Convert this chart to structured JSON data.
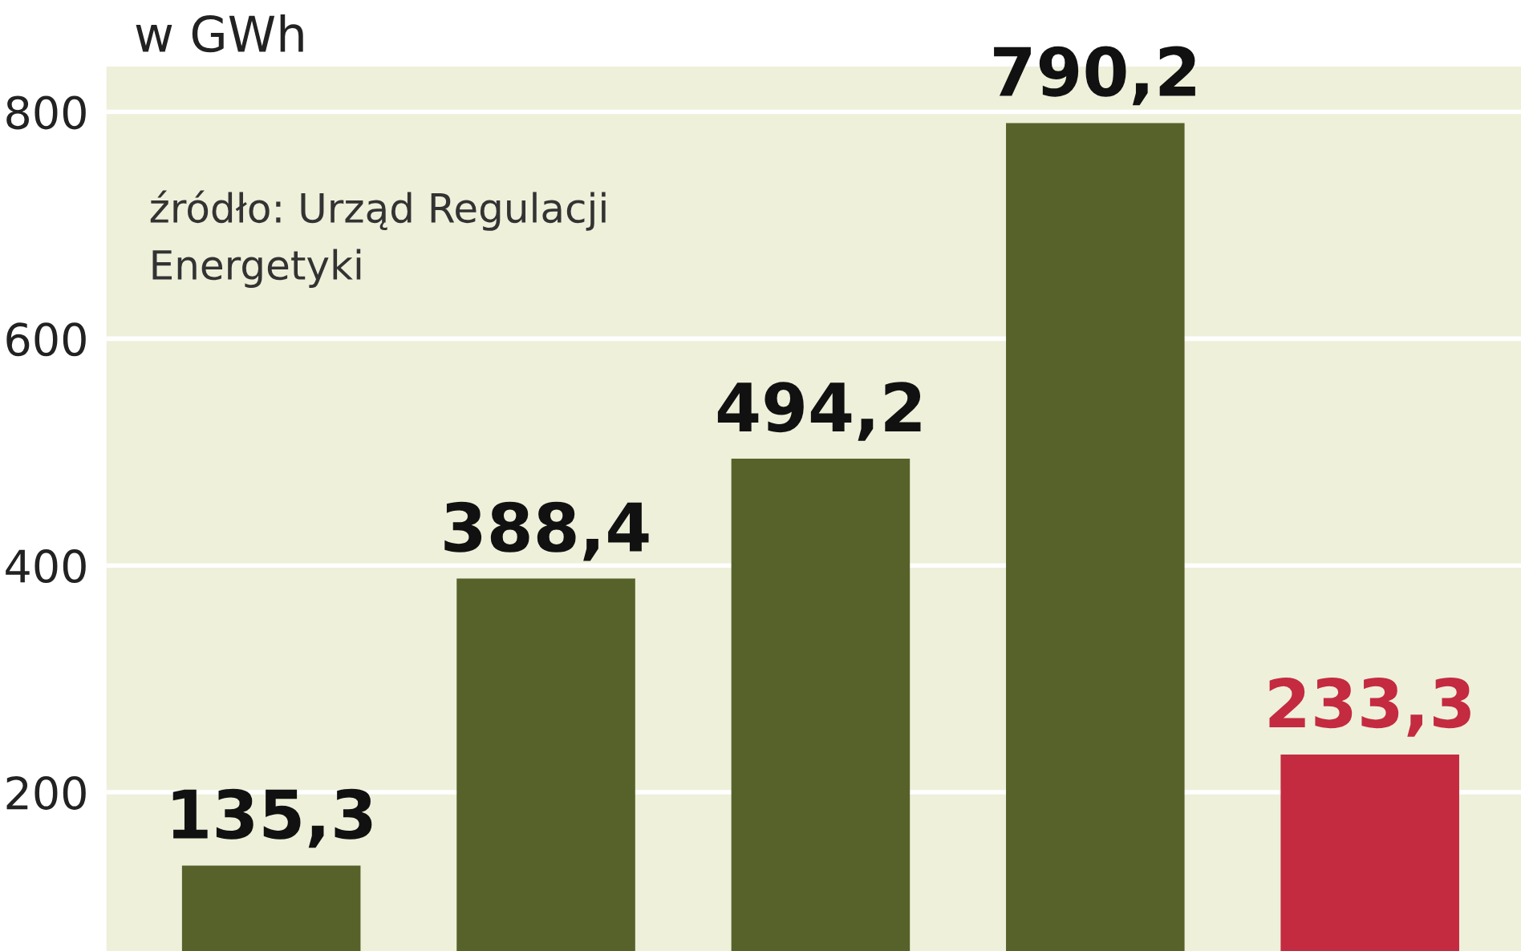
{
  "chart_data": {
    "type": "bar",
    "title": "w GWh",
    "categories": [
      null,
      null,
      null,
      null,
      null
    ],
    "values": [
      135.3,
      388.4,
      494.2,
      790.2,
      233.3
    ],
    "colors": [
      "#56622a",
      "#56622a",
      "#56622a",
      "#56622a",
      "#c42a40"
    ],
    "value_labels": [
      "135,3",
      "388,4",
      "494,2",
      "790,2",
      "233,3"
    ],
    "ylim": [
      60,
      840
    ],
    "yticks": [
      200,
      400,
      600,
      800
    ],
    "grid": "y",
    "annotations": [
      "źródło: Urząd Regulacji\nEnergetyki"
    ]
  }
}
